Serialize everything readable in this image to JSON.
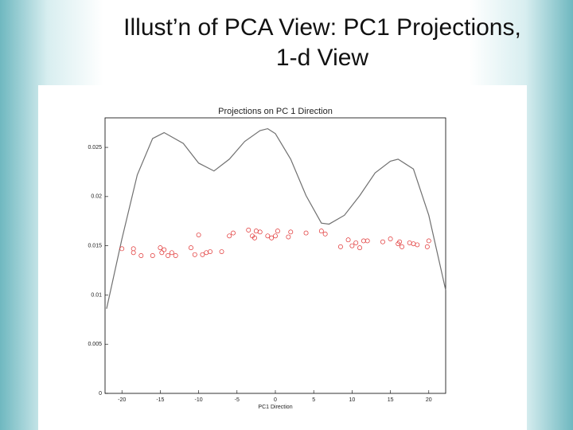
{
  "slide_title": [
    "Illust’n of PCA View:    PC1 Projections,",
    "1-d View"
  ],
  "chart_data": {
    "type": "line",
    "title": "Projections on PC 1 Direction",
    "x_label": "PC1 Direction",
    "xlim": [
      -22.2,
      22.2
    ],
    "ylim": [
      0,
      0.028
    ],
    "xticks": [
      -20,
      -15,
      -10,
      -5,
      0,
      5,
      10,
      15,
      20
    ],
    "yticks": [
      0,
      0.005,
      0.01,
      0.015,
      0.02,
      0.025
    ],
    "series": [
      {
        "mark": "line",
        "color": "#707070",
        "x": [
          -22,
          -20,
          -18,
          -16,
          -14.5,
          -12,
          -10,
          -8,
          -6,
          -4,
          -2,
          -1,
          0,
          2,
          4,
          6,
          7,
          9,
          11,
          13,
          15,
          16,
          18,
          20,
          22.2
        ],
        "values": [
          0.0086,
          0.0157,
          0.0222,
          0.0259,
          0.0265,
          0.0254,
          0.0234,
          0.0226,
          0.0238,
          0.0256,
          0.0267,
          0.0269,
          0.0264,
          0.0238,
          0.0201,
          0.0173,
          0.0172,
          0.0181,
          0.0201,
          0.0224,
          0.0236,
          0.0238,
          0.0228,
          0.0181,
          0.0105
        ]
      },
      {
        "mark": "marker",
        "color": "#e03030",
        "x": [
          -20,
          -18.5,
          -18.5,
          -17.5,
          -16,
          -15,
          -14.8,
          -14.5,
          -14,
          -13.5,
          -13,
          -11,
          -10.5,
          -10,
          -9.5,
          -9,
          -8.5,
          -7,
          -6,
          -5.5,
          -3.5,
          -3,
          -2.5,
          -2.7,
          -2,
          -1,
          -0.5,
          0,
          0.3,
          1.7,
          2,
          4,
          6,
          6.5,
          8.5,
          9.5,
          10,
          10.5,
          11,
          11.5,
          12,
          14,
          15,
          16,
          16.5,
          16.2,
          17.5,
          18,
          18.5,
          19.8,
          20
        ],
        "values": [
          0.0147,
          0.0143,
          0.0147,
          0.014,
          0.014,
          0.0148,
          0.0143,
          0.0146,
          0.014,
          0.0143,
          0.014,
          0.0148,
          0.0141,
          0.0161,
          0.0141,
          0.0143,
          0.0144,
          0.0144,
          0.016,
          0.0163,
          0.0166,
          0.016,
          0.0165,
          0.0158,
          0.0164,
          0.016,
          0.0158,
          0.016,
          0.0165,
          0.0159,
          0.0164,
          0.0163,
          0.0165,
          0.0162,
          0.0149,
          0.0156,
          0.015,
          0.0153,
          0.0148,
          0.0155,
          0.0155,
          0.0154,
          0.0157,
          0.0152,
          0.0149,
          0.0154,
          0.0153,
          0.0152,
          0.0151,
          0.0149,
          0.0155
        ]
      }
    ]
  }
}
